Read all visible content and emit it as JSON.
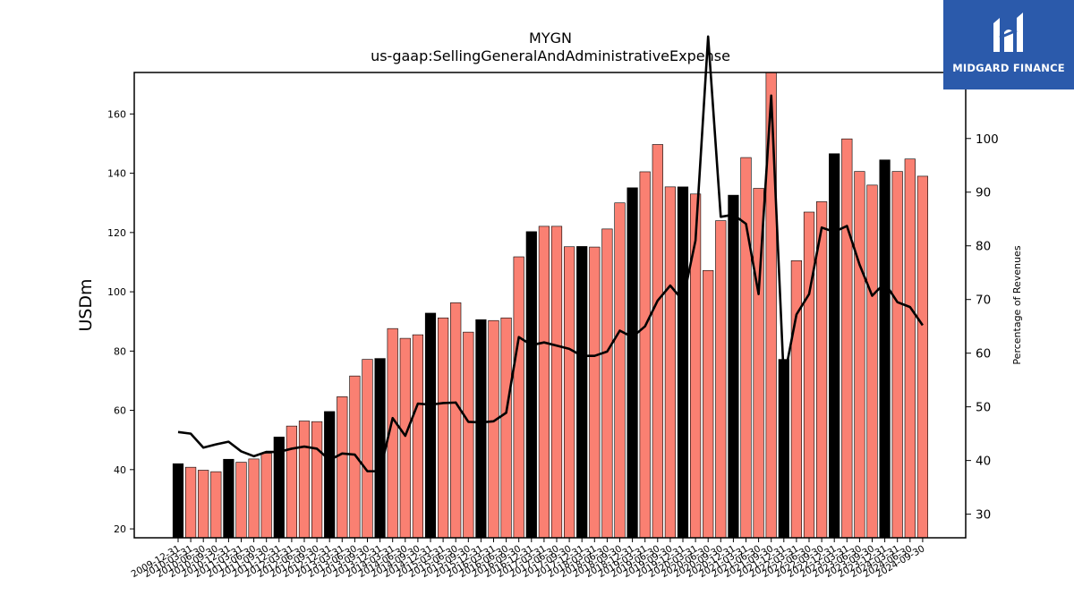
{
  "brand": {
    "name": "MIDGARD FINANCE",
    "color": "#2b5aab"
  },
  "chart_data": {
    "type": "bar",
    "title": "MYGN",
    "subtitle": "us-gaap:SellingGeneralAndAdministrativeExpense",
    "ylabel": "USDm",
    "y2label": "Percentage of Revenues",
    "ylim": [
      17,
      174
    ],
    "y2lim": [
      25.6,
      112.3
    ],
    "yticks": [
      20,
      40,
      60,
      80,
      100,
      120,
      140,
      160
    ],
    "y2ticks": [
      30,
      40,
      50,
      60,
      70,
      80,
      90,
      100
    ],
    "colors": {
      "quarter_bar": "#fa8072",
      "fiscal_year_end_bar": "#000000",
      "ratio_line": "#000000"
    },
    "categories": [
      "2009-12-31",
      "2010-03-31",
      "2010-06-30",
      "2010-09-30",
      "2010-12-31",
      "2011-03-31",
      "2011-06-30",
      "2011-09-30",
      "2011-12-31",
      "2012-03-31",
      "2012-06-30",
      "2012-09-30",
      "2012-12-31",
      "2013-03-31",
      "2013-06-30",
      "2013-09-30",
      "2013-12-31",
      "2014-03-31",
      "2014-06-30",
      "2014-09-30",
      "2014-12-31",
      "2015-03-31",
      "2015-06-30",
      "2015-09-30",
      "2015-12-31",
      "2016-03-31",
      "2016-06-30",
      "2016-09-30",
      "2016-12-31",
      "2017-03-31",
      "2017-06-30",
      "2017-09-30",
      "2017-12-31",
      "2018-03-31",
      "2018-06-30",
      "2018-09-30",
      "2018-12-31",
      "2019-03-31",
      "2019-06-30",
      "2019-09-30",
      "2019-12-31",
      "2020-03-31",
      "2020-06-30",
      "2020-09-30",
      "2020-12-31",
      "2021-03-31",
      "2021-06-30",
      "2021-09-30",
      "2021-12-31",
      "2022-03-31",
      "2022-06-30",
      "2022-09-30",
      "2022-12-31",
      "2023-03-31",
      "2023-06-30",
      "2023-09-30",
      "2023-12-31",
      "2024-03-31",
      "2024-06-30",
      "2024-09-30"
    ],
    "series": [
      {
        "kind": "bar",
        "values": [
          42,
          40.8,
          39.8,
          39.3,
          43.5,
          42.5,
          43.6,
          45.5,
          51,
          54.7,
          56.4,
          56.2,
          59.6,
          64.6,
          71.6,
          77.2,
          77.5,
          87.6,
          84.3,
          85.5,
          92.8,
          91.2,
          96.3,
          86.4,
          90.6,
          90.3,
          91.2,
          111.8,
          120.3,
          122.1,
          122.1,
          115.2,
          115.3,
          115.1,
          121.2,
          130,
          135.1,
          140.5,
          149.7,
          135.4,
          135.4,
          133,
          107.2,
          124,
          132.6,
          145.3,
          134.9,
          174.5,
          77.2,
          110.5,
          126.9,
          130.4,
          146.6,
          151.6,
          140.6,
          136,
          144.5,
          140.6,
          144.8,
          139
        ],
        "highlight": [
          0,
          4,
          8,
          12,
          16,
          20,
          24,
          28,
          32,
          36,
          40,
          44,
          48,
          52,
          56
        ]
      },
      {
        "kind": "line",
        "axis": "right",
        "values": [
          45.3,
          45,
          42.4,
          43,
          43.5,
          41.7,
          40.8,
          41.6,
          41.6,
          42.2,
          42.6,
          42.2,
          40.1,
          41.3,
          41.1,
          38,
          38,
          47.9,
          44.6,
          50.6,
          50.4,
          50.7,
          50.8,
          47.2,
          47.1,
          47.3,
          48.9,
          63,
          61.5,
          62,
          61.4,
          60.8,
          59.5,
          59.5,
          60.3,
          64.2,
          63,
          65,
          69.8,
          72.6,
          69.8,
          81,
          119,
          85.4,
          85.8,
          84.1,
          71,
          108,
          55,
          67.2,
          71,
          83.4,
          82.6,
          83.7,
          76.5,
          70.7,
          73.1,
          69.5,
          68.6,
          65.2
        ]
      }
    ],
    "grid": false,
    "legend": "none"
  }
}
